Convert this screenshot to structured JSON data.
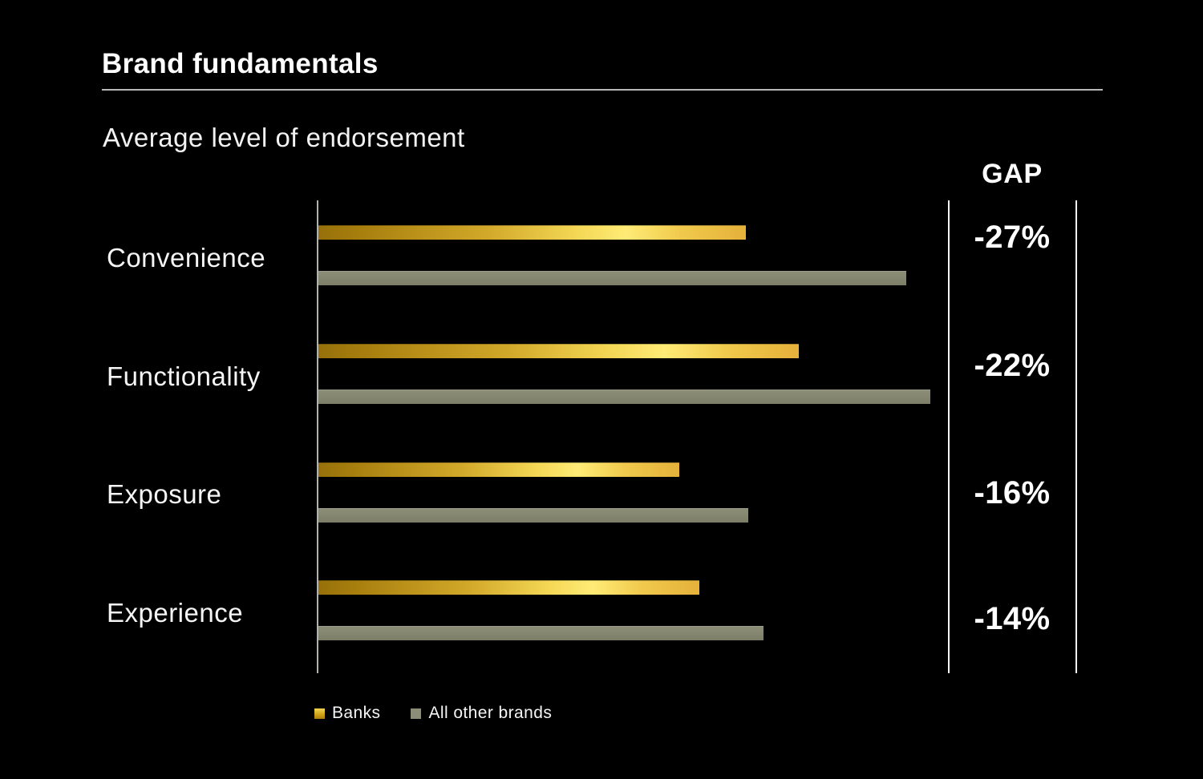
{
  "header": {
    "title": "Brand fundamentals",
    "subtitle": "Average level of endorsement"
  },
  "gap_column": {
    "header": "GAP"
  },
  "legend": [
    {
      "label": "Banks",
      "swatch": "gold"
    },
    {
      "label": "All other brands",
      "swatch": "gray"
    }
  ],
  "colors": {
    "background": "#000000",
    "text": "#ffffff",
    "banks_bar_dark": "#96700a",
    "banks_bar_bright": "#ffeb76",
    "banks_bar_tip": "#e5b13a",
    "others_bar": "#84866f",
    "axis_line": "#b3b3ab",
    "gap_lines": "#f5f5f5",
    "title_rule": "#b9b9b9"
  },
  "chart_data": {
    "type": "bar",
    "orientation": "horizontal",
    "title": "Brand fundamentals",
    "subtitle": "Average level of endorsement",
    "categories": [
      "Convenience",
      "Functionality",
      "Exposure",
      "Experience"
    ],
    "series": [
      {
        "name": "Banks",
        "values": [
          68.0,
          76.4,
          57.4,
          60.6
        ]
      },
      {
        "name": "All other brands",
        "values": [
          93.5,
          97.3,
          68.4,
          70.8
        ]
      }
    ],
    "gap_labels": [
      "-27%",
      "-22%",
      "-16%",
      "-14%"
    ],
    "xlim": [
      0,
      100
    ],
    "grid": false,
    "legend_position": "bottom"
  }
}
